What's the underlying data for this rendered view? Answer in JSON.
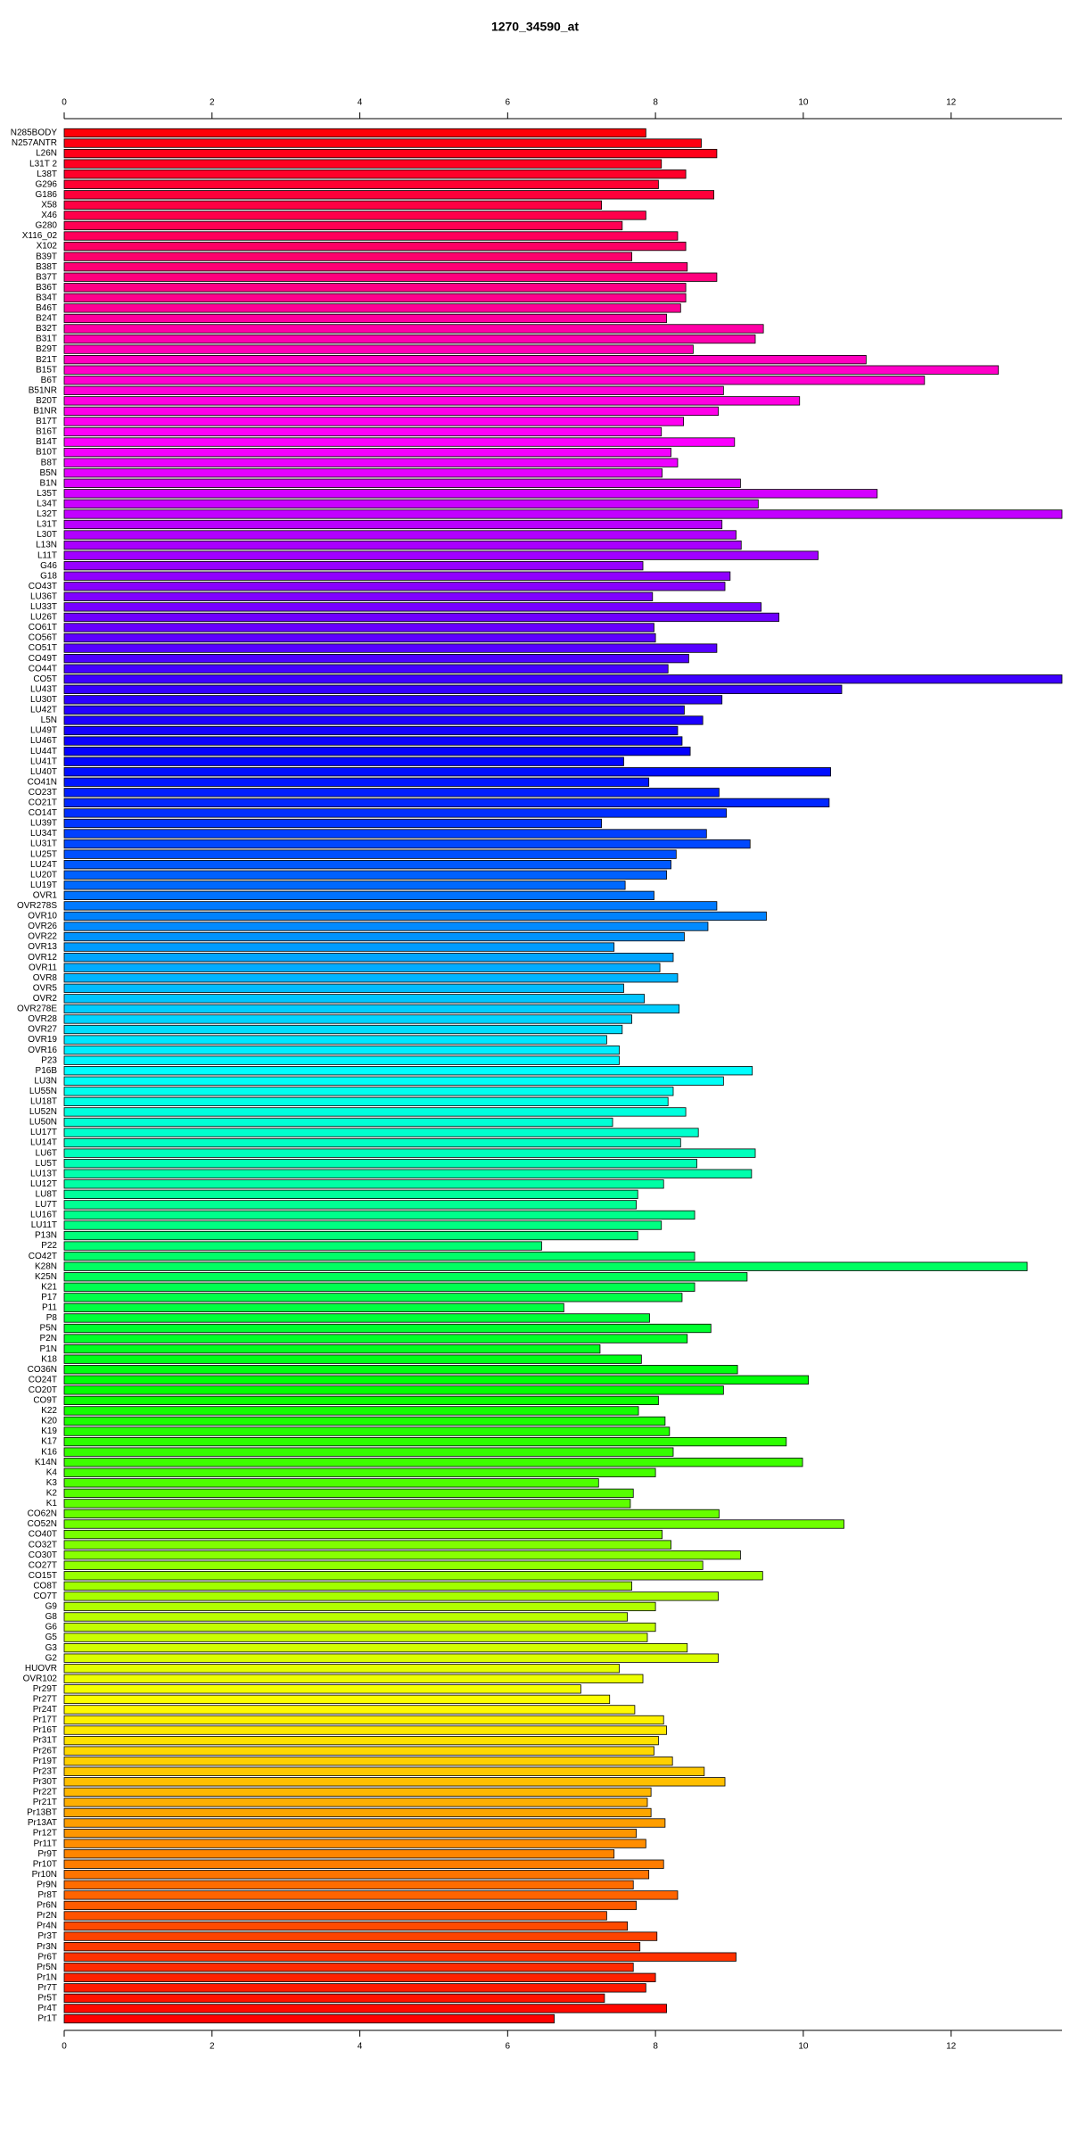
{
  "chart_data": {
    "type": "bar",
    "orientation": "horizontal",
    "palette": "rainbow",
    "title": "1270_34590_at",
    "categories": [
      "N285BODY",
      "N257ANTR",
      "L26N",
      "L31T 2",
      "L38T",
      "G296",
      "G186",
      "X58",
      "X46",
      "G280",
      "X116_02",
      "X102",
      "B39T",
      "B38T",
      "B37T",
      "B36T",
      "B34T",
      "B46T",
      "B24T",
      "B32T",
      "B31T",
      "B29T",
      "B21T",
      "B15T",
      "B6T",
      "B51NR",
      "B20T",
      "B1NR",
      "B17T",
      "B16T",
      "B14T",
      "B10T",
      "B8T",
      "B5N",
      "B1N",
      "L35T",
      "L34T",
      "L32T",
      "L31T",
      "L30T",
      "L13N",
      "L11T",
      "G46",
      "G18",
      "CO43T",
      "LU36T",
      "LU33T",
      "LU26T",
      "CO61T",
      "CO56T",
      "CO51T",
      "CO49T",
      "CO44T",
      "CO5T",
      "LU43T",
      "LU30T",
      "LU42T",
      "L5N",
      "LU49T",
      "LU46T",
      "LU44T",
      "LU41T",
      "LU40T",
      "CO41N",
      "CO23T",
      "CO21T",
      "CO14T",
      "LU39T",
      "LU34T",
      "LU31T",
      "LU25T",
      "LU24T",
      "LU20T",
      "LU19T",
      "OVR1",
      "OVR278S",
      "OVR10",
      "OVR26",
      "OVR22",
      "OVR13",
      "OVR12",
      "OVR11",
      "OVR8",
      "OVR5",
      "OVR2",
      "OVR278E",
      "OVR28",
      "OVR27",
      "OVR19",
      "OVR16",
      "P23",
      "P16B",
      "LU3N",
      "LU55N",
      "LU18T",
      "LU52N",
      "LU50N",
      "LU17T",
      "LU14T",
      "LU6T",
      "LU5T",
      "LU13T",
      "LU12T",
      "LU8T",
      "LU7T",
      "LU16T",
      "LU11T",
      "P13N",
      "P22",
      "CO42T",
      "K28N",
      "K25N",
      "K21",
      "P17",
      "P11",
      "P8",
      "P5N",
      "P2N",
      "P1N",
      "K18",
      "CO36N",
      "CO24T",
      "CO20T",
      "CO9T",
      "K22",
      "K20",
      "K19",
      "K17",
      "K16",
      "K14N",
      "K4",
      "K3",
      "K2",
      "K1",
      "CO62N",
      "CO52N",
      "CO40T",
      "CO32T",
      "CO30T",
      "CO27T",
      "CO15T",
      "CO8T",
      "CO7T",
      "G9",
      "G8",
      "G6",
      "G5",
      "G3",
      "G2",
      "HUOVR",
      "OVR102",
      "Pr29T",
      "Pr27T",
      "Pr24T",
      "Pr17T",
      "Pr16T",
      "Pr31T",
      "Pr26T",
      "Pr19T",
      "Pr23T",
      "Pr30T",
      "Pr22T",
      "Pr21T",
      "Pr13BT",
      "Pr13AT",
      "Pr12T",
      "Pr11T",
      "Pr9T",
      "Pr10T",
      "Pr10N",
      "Pr9N",
      "Pr8T",
      "Pr6N",
      "Pr2N",
      "Pr4N",
      "Pr3T",
      "Pr3N",
      "Pr6T",
      "Pr5N",
      "Pr1N",
      "Pr7T",
      "Pr5T",
      "Pr4T",
      "Pr1T"
    ],
    "values": [
      7.87,
      8.62,
      8.83,
      8.08,
      8.41,
      8.04,
      8.79,
      7.27,
      7.87,
      7.55,
      8.3,
      8.41,
      7.68,
      8.43,
      8.83,
      8.41,
      8.41,
      8.34,
      8.15,
      9.46,
      9.35,
      8.51,
      10.85,
      12.64,
      11.64,
      8.92,
      9.95,
      8.85,
      8.38,
      8.08,
      9.07,
      8.21,
      8.3,
      8.09,
      9.15,
      11.0,
      9.39,
      13.5,
      8.9,
      9.09,
      9.16,
      10.2,
      7.83,
      9.01,
      8.94,
      7.96,
      9.43,
      9.67,
      7.98,
      8.0,
      8.83,
      8.45,
      8.17,
      13.5,
      10.52,
      8.9,
      8.39,
      8.64,
      8.3,
      8.36,
      8.47,
      7.57,
      10.37,
      7.91,
      8.86,
      10.35,
      8.96,
      7.27,
      8.69,
      9.28,
      8.28,
      8.21,
      8.15,
      7.59,
      7.98,
      8.83,
      9.5,
      8.71,
      8.39,
      7.44,
      8.24,
      8.06,
      8.3,
      7.57,
      7.85,
      8.32,
      7.68,
      7.55,
      7.34,
      7.51,
      7.51,
      9.31,
      8.92,
      8.24,
      8.17,
      8.41,
      7.42,
      8.58,
      8.34,
      9.35,
      8.56,
      9.3,
      8.11,
      7.76,
      7.74,
      8.53,
      8.08,
      7.76,
      6.46,
      8.53,
      13.03,
      9.24,
      8.53,
      8.36,
      6.76,
      7.92,
      8.75,
      8.43,
      7.25,
      7.81,
      9.11,
      10.07,
      8.92,
      8.04,
      7.77,
      8.13,
      8.19,
      9.77,
      8.24,
      9.99,
      8.0,
      7.23,
      7.7,
      7.66,
      8.86,
      10.55,
      8.09,
      8.21,
      9.15,
      8.64,
      9.45,
      7.68,
      8.85,
      8.0,
      7.62,
      8.0,
      7.89,
      8.43,
      8.85,
      7.51,
      7.83,
      6.99,
      7.38,
      7.72,
      8.11,
      8.15,
      8.04,
      7.98,
      8.23,
      8.66,
      8.94,
      7.94,
      7.89,
      7.94,
      8.13,
      7.74,
      7.87,
      7.44,
      8.11,
      7.91,
      7.7,
      8.3,
      7.74,
      7.34,
      7.62,
      8.02,
      7.79,
      9.09,
      7.7,
      8.0,
      7.87,
      7.31,
      8.15,
      6.63
    ],
    "xlim": [
      0,
      13.5
    ],
    "xticks": [
      0,
      2,
      4,
      6,
      8,
      10,
      12
    ]
  }
}
